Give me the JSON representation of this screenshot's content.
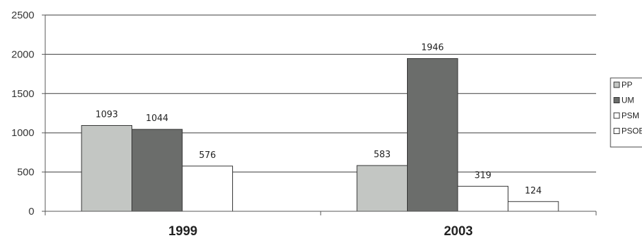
{
  "chart_data": {
    "type": "bar",
    "categories": [
      "1999",
      "2003"
    ],
    "series": [
      {
        "name": "PP",
        "values": [
          1093,
          583
        ],
        "color": "#c3c6c3"
      },
      {
        "name": "UM",
        "values": [
          1044,
          1946
        ],
        "color": "#6b6d6b"
      },
      {
        "name": "PSM",
        "values": [
          576,
          319
        ],
        "color": "#ffffff"
      },
      {
        "name": "PSOE",
        "values": [
          null,
          124
        ],
        "color": "#ffffff"
      }
    ],
    "y_ticks": [
      "0",
      "500",
      "1000",
      "1500",
      "2000",
      "2500"
    ],
    "ylim": [
      0,
      2500
    ],
    "grid": true,
    "legend_position": "right",
    "title": "",
    "xlabel": "",
    "ylabel": ""
  }
}
